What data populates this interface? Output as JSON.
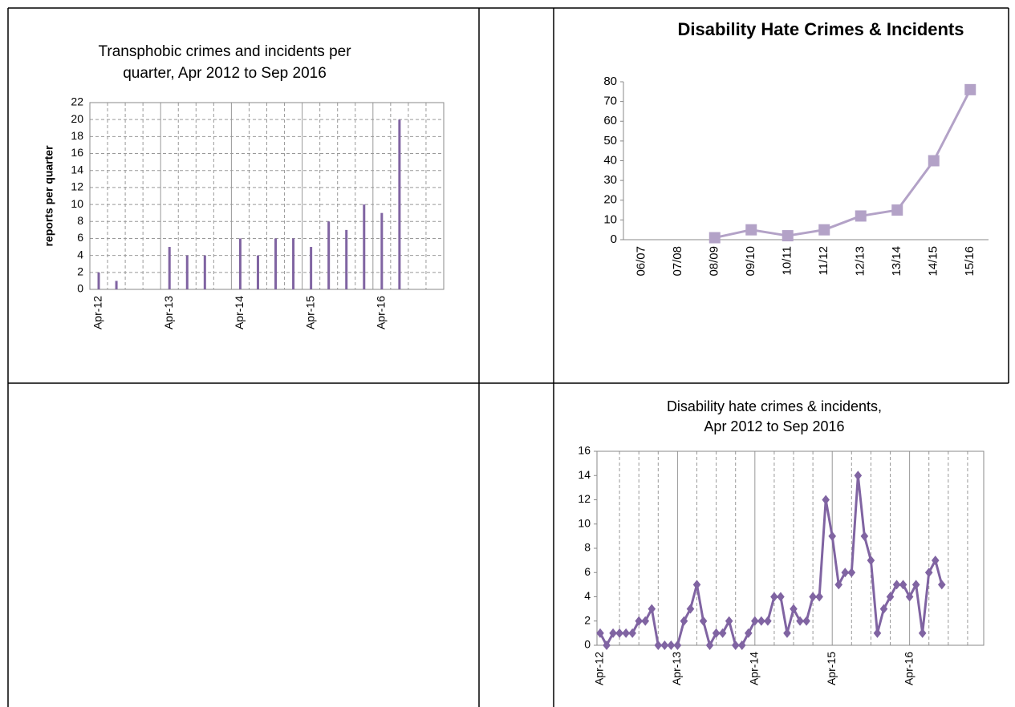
{
  "chart_data": [
    {
      "type": "bar",
      "title": [
        "Transphobic crimes and incidents per",
        "quarter,  Apr 2012 to Sep 2016"
      ],
      "ylabel": "reports per quarter",
      "categories": [
        "Apr-12",
        null,
        null,
        null,
        "Apr-13",
        null,
        null,
        null,
        "Apr-14",
        null,
        null,
        null,
        "Apr-15",
        null,
        null,
        null,
        "Apr-16",
        null,
        null,
        null
      ],
      "values": [
        2,
        1,
        0,
        0,
        5,
        4,
        4,
        0,
        6,
        4,
        6,
        6,
        5,
        8,
        7,
        10,
        9,
        20,
        null,
        null
      ],
      "color": "#8064a2",
      "ylim": [
        0,
        22
      ],
      "yticks": [
        0,
        2,
        4,
        6,
        8,
        10,
        12,
        14,
        16,
        18,
        20,
        22
      ],
      "xgrid": true,
      "ygrid": true
    },
    {
      "type": "line",
      "title": "Disability Hate Crimes & Incidents",
      "categories": [
        "06/07",
        "07/08",
        "08/09",
        "09/10",
        "10/11",
        "11/12",
        "12/13",
        "13/14",
        "14/15",
        "15/16"
      ],
      "values": [
        null,
        null,
        1,
        5,
        2,
        5,
        12,
        15,
        40,
        76
      ],
      "color": "#b3a2c7",
      "marker": "square",
      "ylim": [
        0,
        80
      ],
      "yticks": [
        0,
        10,
        20,
        30,
        40,
        50,
        60,
        70,
        80
      ],
      "xgrid": false,
      "ygrid": false
    },
    {
      "type": "line",
      "title": [
        "Disability hate crimes & incidents,",
        "Apr 2012 to Sep 2016"
      ],
      "categories": [
        "Apr-12",
        null,
        null,
        null,
        null,
        null,
        null,
        null,
        null,
        null,
        null,
        null,
        "Apr-13",
        null,
        null,
        null,
        null,
        null,
        null,
        null,
        null,
        null,
        null,
        null,
        "Apr-14",
        null,
        null,
        null,
        null,
        null,
        null,
        null,
        null,
        null,
        null,
        null,
        "Apr-15",
        null,
        null,
        null,
        null,
        null,
        null,
        null,
        null,
        null,
        null,
        null,
        "Apr-16",
        null,
        null,
        null,
        null,
        null,
        null,
        null,
        null,
        null,
        null,
        null
      ],
      "values": [
        1,
        0,
        1,
        1,
        1,
        1,
        2,
        2,
        3,
        0,
        0,
        0,
        0,
        2,
        3,
        5,
        2,
        0,
        1,
        1,
        2,
        0,
        0,
        1,
        2,
        2,
        2,
        4,
        4,
        1,
        3,
        2,
        2,
        4,
        4,
        12,
        9,
        5,
        6,
        6,
        14,
        9,
        7,
        1,
        3,
        4,
        5,
        5,
        4,
        5,
        1,
        6,
        7,
        5,
        null,
        null,
        null,
        null,
        null,
        null
      ],
      "color": "#8064a2",
      "marker": "diamond",
      "ylim": [
        0,
        16
      ],
      "yticks": [
        0,
        2,
        4,
        6,
        8,
        10,
        12,
        14,
        16
      ],
      "xgrid": true,
      "ygrid": false
    }
  ]
}
